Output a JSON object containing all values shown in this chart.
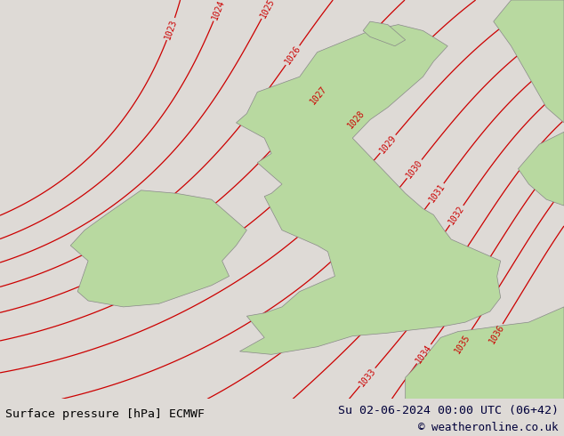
{
  "title_left": "Surface pressure [hPa] ECMWF",
  "title_right": "Su 02-06-2024 00:00 UTC (06+42)",
  "copyright": "© weatheronline.co.uk",
  "bg_color": "#dedad6",
  "land_color": "#b8d9a0",
  "sea_color": "#dedad6",
  "contour_color": "#cc0000",
  "label_color": "#cc0000",
  "contour_linewidth": 0.9,
  "label_fontsize": 7.0,
  "footer_fontsize": 9.5,
  "pressure_min": 1023,
  "pressure_max": 1036,
  "pressure_step": 1,
  "footer_bg": "#e8e6e2",
  "footer_line_color": "#aaaaaa"
}
